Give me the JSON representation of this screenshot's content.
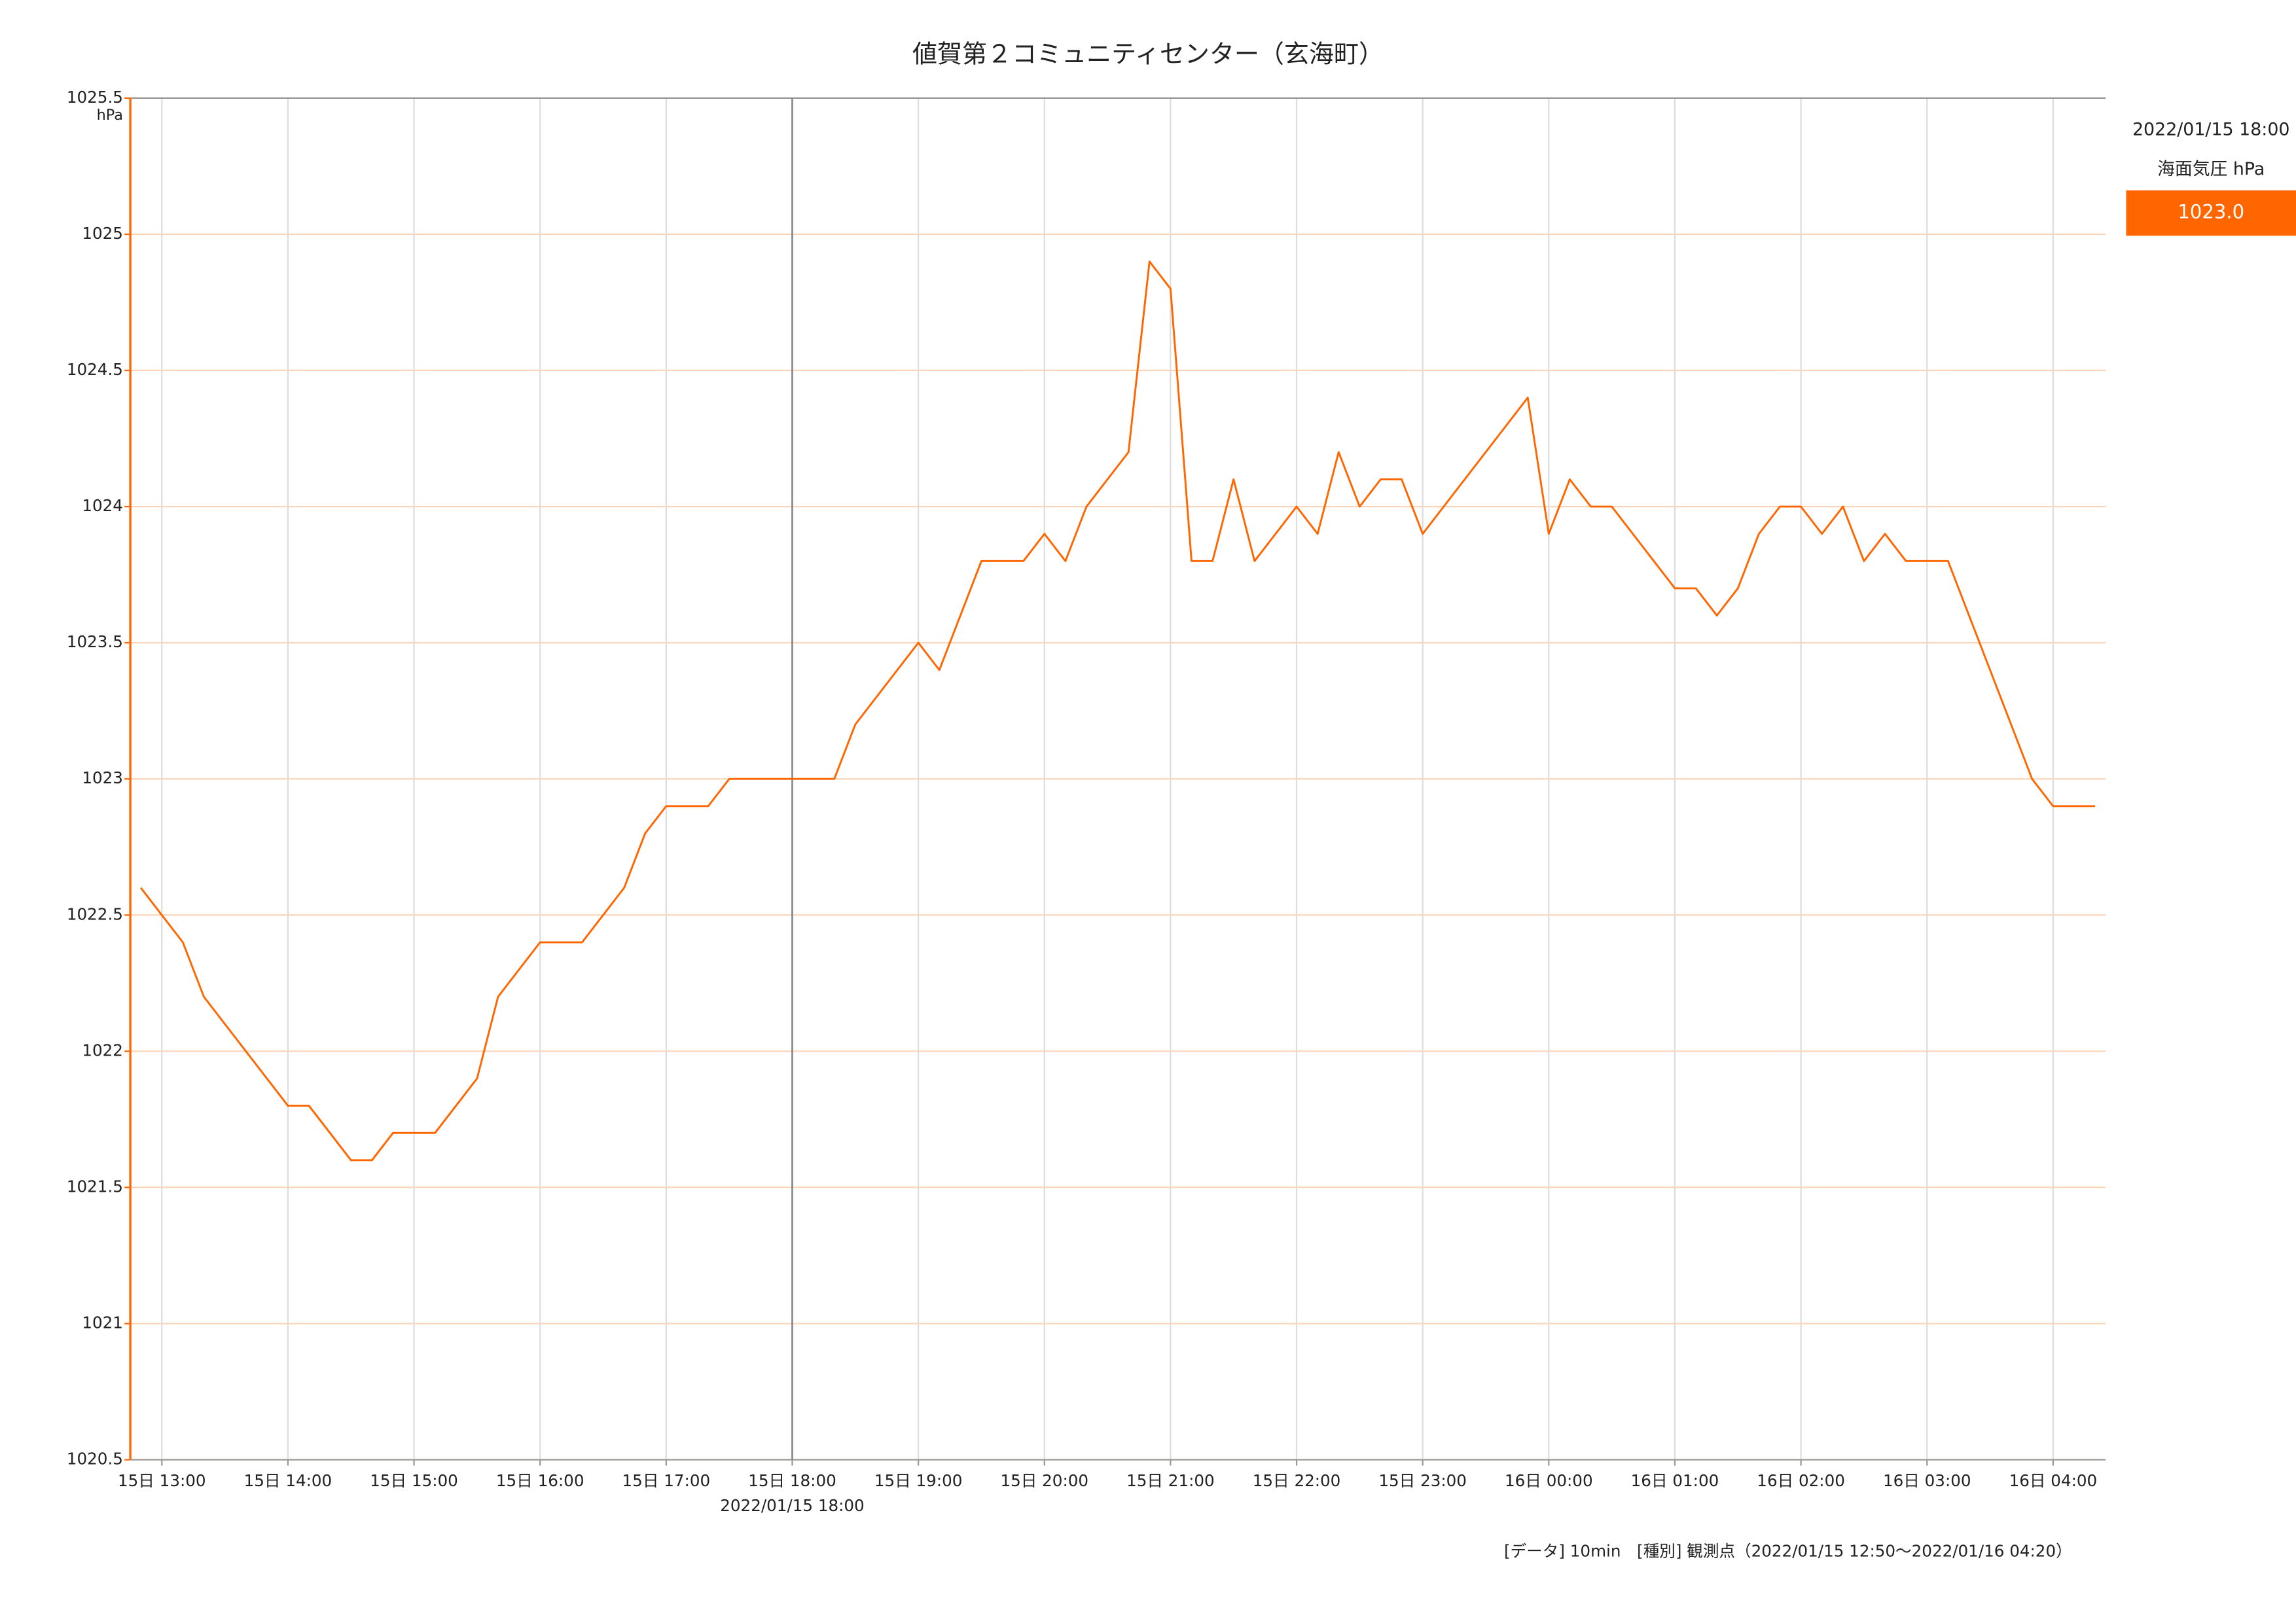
{
  "chart_data": {
    "type": "line",
    "title": "値賀第２コミュニティセンター（玄海町）",
    "y_unit": "hPa",
    "note": "[データ] 10min　[種別] 観測点（2022/01/15 12:50〜2022/01/16 04:20）",
    "cursor": {
      "label": "2022/01/15 18:00",
      "value_label": "1023.0"
    },
    "x": [
      "2022/01/15 12:50",
      "2022/01/15 13:00",
      "2022/01/15 13:10",
      "2022/01/15 13:20",
      "2022/01/15 13:30",
      "2022/01/15 13:40",
      "2022/01/15 13:50",
      "2022/01/15 14:00",
      "2022/01/15 14:10",
      "2022/01/15 14:20",
      "2022/01/15 14:30",
      "2022/01/15 14:40",
      "2022/01/15 14:50",
      "2022/01/15 15:00",
      "2022/01/15 15:10",
      "2022/01/15 15:20",
      "2022/01/15 15:30",
      "2022/01/15 15:40",
      "2022/01/15 15:50",
      "2022/01/15 16:00",
      "2022/01/15 16:10",
      "2022/01/15 16:20",
      "2022/01/15 16:30",
      "2022/01/15 16:40",
      "2022/01/15 16:50",
      "2022/01/15 17:00",
      "2022/01/15 17:10",
      "2022/01/15 17:20",
      "2022/01/15 17:30",
      "2022/01/15 17:40",
      "2022/01/15 17:50",
      "2022/01/15 18:00",
      "2022/01/15 18:10",
      "2022/01/15 18:20",
      "2022/01/15 18:30",
      "2022/01/15 18:40",
      "2022/01/15 18:50",
      "2022/01/15 19:00",
      "2022/01/15 19:10",
      "2022/01/15 19:20",
      "2022/01/15 19:30",
      "2022/01/15 19:40",
      "2022/01/15 19:50",
      "2022/01/15 20:00",
      "2022/01/15 20:10",
      "2022/01/15 20:20",
      "2022/01/15 20:30",
      "2022/01/15 20:40",
      "2022/01/15 20:50",
      "2022/01/15 21:00",
      "2022/01/15 21:10",
      "2022/01/15 21:20",
      "2022/01/15 21:30",
      "2022/01/15 21:40",
      "2022/01/15 21:50",
      "2022/01/15 22:00",
      "2022/01/15 22:10",
      "2022/01/15 22:20",
      "2022/01/15 22:30",
      "2022/01/15 22:40",
      "2022/01/15 22:50",
      "2022/01/15 23:00",
      "2022/01/15 23:10",
      "2022/01/15 23:20",
      "2022/01/15 23:30",
      "2022/01/15 23:40",
      "2022/01/15 23:50",
      "2022/01/16 00:00",
      "2022/01/16 00:10",
      "2022/01/16 00:20",
      "2022/01/16 00:30",
      "2022/01/16 00:40",
      "2022/01/16 00:50",
      "2022/01/16 01:00",
      "2022/01/16 01:10",
      "2022/01/16 01:20",
      "2022/01/16 01:30",
      "2022/01/16 01:40",
      "2022/01/16 01:50",
      "2022/01/16 02:00",
      "2022/01/16 02:10",
      "2022/01/16 02:20",
      "2022/01/16 02:30",
      "2022/01/16 02:40",
      "2022/01/16 02:50",
      "2022/01/16 03:00",
      "2022/01/16 03:10",
      "2022/01/16 03:20",
      "2022/01/16 03:30",
      "2022/01/16 03:40",
      "2022/01/16 03:50",
      "2022/01/16 04:00",
      "2022/01/16 04:10",
      "2022/01/16 04:20"
    ],
    "series": [
      {
        "name": "海面気圧 hPa",
        "color": "#ff6600",
        "values": [
          1022.6,
          1022.5,
          1022.4,
          1022.2,
          1022.1,
          1022.0,
          1021.9,
          1021.8,
          1021.8,
          1021.7,
          1021.6,
          1021.6,
          1021.7,
          1021.7,
          1021.7,
          1021.8,
          1021.9,
          1022.2,
          1022.3,
          1022.4,
          1022.4,
          1022.4,
          1022.5,
          1022.6,
          1022.8,
          1022.9,
          1022.9,
          1022.9,
          1023.0,
          1023.0,
          1023.0,
          1023.0,
          1023.0,
          1023.0,
          1023.2,
          1023.3,
          1023.4,
          1023.5,
          1023.4,
          1023.6,
          1023.8,
          1023.8,
          1023.8,
          1023.9,
          1023.8,
          1024.0,
          1024.1,
          1024.2,
          1024.9,
          1024.8,
          1023.8,
          1023.8,
          1024.1,
          1023.8,
          1023.9,
          1024.0,
          1023.9,
          1024.2,
          1024.0,
          1024.1,
          1024.1,
          1023.9,
          1024.0,
          1024.1,
          1024.2,
          1024.3,
          1024.4,
          1023.9,
          1024.1,
          1024.0,
          1024.0,
          1023.9,
          1023.8,
          1023.7,
          1023.7,
          1023.6,
          1023.7,
          1023.9,
          1024.0,
          1024.0,
          1023.9,
          1024.0,
          1023.8,
          1023.9,
          1023.8,
          1023.8,
          1023.8,
          1023.6,
          1023.4,
          1023.2,
          1023.0,
          1022.9,
          1022.9,
          1022.9
        ]
      }
    ],
    "xlim": [
      "2022/01/15 12:45",
      "2022/01/16 04:25"
    ],
    "xticks": [
      {
        "value": "2022/01/15 13:00",
        "label": "15日 13:00"
      },
      {
        "value": "2022/01/15 14:00",
        "label": "15日 14:00"
      },
      {
        "value": "2022/01/15 15:00",
        "label": "15日 15:00"
      },
      {
        "value": "2022/01/15 16:00",
        "label": "15日 16:00"
      },
      {
        "value": "2022/01/15 17:00",
        "label": "15日 17:00"
      },
      {
        "value": "2022/01/15 18:00",
        "label": "15日 18:00"
      },
      {
        "value": "2022/01/15 19:00",
        "label": "15日 19:00"
      },
      {
        "value": "2022/01/15 20:00",
        "label": "15日 20:00"
      },
      {
        "value": "2022/01/15 21:00",
        "label": "15日 21:00"
      },
      {
        "value": "2022/01/15 22:00",
        "label": "15日 22:00"
      },
      {
        "value": "2022/01/15 23:00",
        "label": "15日 23:00"
      },
      {
        "value": "2022/01/16 00:00",
        "label": "16日 00:00"
      },
      {
        "value": "2022/01/16 01:00",
        "label": "16日 01:00"
      },
      {
        "value": "2022/01/16 02:00",
        "label": "16日 02:00"
      },
      {
        "value": "2022/01/16 03:00",
        "label": "16日 03:00"
      },
      {
        "value": "2022/01/16 04:00",
        "label": "16日 04:00"
      }
    ],
    "ylim": [
      1020.5,
      1025.5
    ],
    "yticks": [
      1020.5,
      1021,
      1021.5,
      1022,
      1022.5,
      1023,
      1023.5,
      1024,
      1024.5,
      1025,
      1025.5
    ],
    "grid": true
  }
}
